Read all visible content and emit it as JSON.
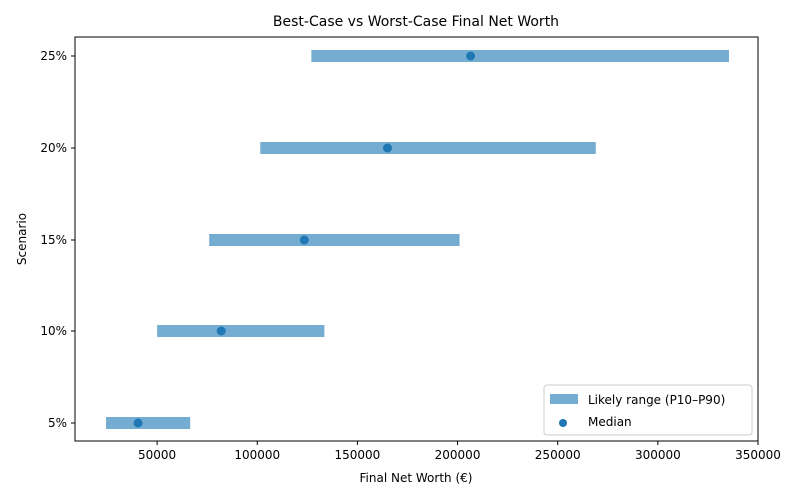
{
  "chart_data": {
    "type": "range-bar",
    "orientation": "horizontal",
    "title": "Best-Case vs Worst-Case Final Net Worth",
    "xlabel": "Final Net Worth (€)",
    "ylabel": "Scenario",
    "xlim": [
      9000,
      350000
    ],
    "x_ticks": [
      50000,
      100000,
      150000,
      200000,
      250000,
      300000,
      350000
    ],
    "x_tick_labels": [
      "50000",
      "100000",
      "150000",
      "200000",
      "250000",
      "300000",
      "350000"
    ],
    "categories": [
      "5%",
      "10%",
      "15%",
      "20%",
      "25%"
    ],
    "series": [
      {
        "name": "Likely range (P10–P90)",
        "kind": "range",
        "color": "#74add1",
        "low": [
          24500,
          50000,
          76000,
          101500,
          127000
        ],
        "high": [
          66500,
          133500,
          201000,
          269000,
          335500
        ]
      },
      {
        "name": "Median",
        "kind": "scatter",
        "color": "#1f77b4",
        "values": [
          40500,
          82000,
          123500,
          165000,
          206500
        ]
      }
    ],
    "grid": false,
    "legend_position": "lower right"
  },
  "legend": {
    "items": [
      {
        "label": "Likely range (P10–P90)",
        "color": "#74add1"
      },
      {
        "label": "Median",
        "color": "#1f77b4"
      }
    ]
  }
}
